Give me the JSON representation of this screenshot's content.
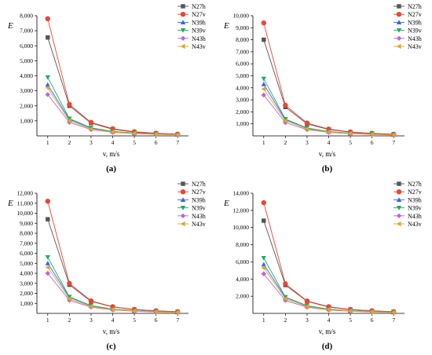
{
  "figure": {
    "panels": [
      "(a)",
      "(b)",
      "(c)",
      "(d)"
    ]
  },
  "chart_data": [
    {
      "type": "line",
      "panel_label": "(a)",
      "xlabel": "v, m/s",
      "ylabel": "E",
      "x": [
        1,
        2,
        3,
        4,
        5,
        6,
        7
      ],
      "xlim": [
        0.5,
        7.5
      ],
      "ylim": [
        0,
        8000
      ],
      "yticks": [
        1000,
        2000,
        3000,
        4000,
        5000,
        6000,
        7000,
        8000
      ],
      "ytick_labels": [
        "1,000",
        "2,000",
        "3,000",
        "4,000",
        "5,000",
        "6,000",
        "7,000",
        "8,000"
      ],
      "legend_position": "top-right",
      "grid": false,
      "series": [
        {
          "name": "N27h",
          "color": "#555555",
          "marker": "square",
          "values": [
            6550,
            2000,
            850,
            440,
            250,
            160,
            100
          ]
        },
        {
          "name": "N27v",
          "color": "#ee4433",
          "marker": "circle",
          "values": [
            7800,
            2100,
            900,
            480,
            280,
            180,
            120
          ]
        },
        {
          "name": "N39h",
          "color": "#3366ee",
          "marker": "triangle-up",
          "values": [
            3400,
            1100,
            520,
            290,
            180,
            120,
            80
          ]
        },
        {
          "name": "N39v",
          "color": "#22aa66",
          "marker": "triangle-down",
          "values": [
            3900,
            1150,
            540,
            300,
            190,
            125,
            85
          ]
        },
        {
          "name": "N43h",
          "color": "#bb66dd",
          "marker": "diamond",
          "values": [
            2750,
            900,
            420,
            240,
            150,
            100,
            70
          ]
        },
        {
          "name": "N43v",
          "color": "#e8a321",
          "marker": "triangle-left",
          "values": [
            3200,
            1000,
            470,
            265,
            165,
            110,
            75
          ]
        }
      ]
    },
    {
      "type": "line",
      "panel_label": "(b)",
      "xlabel": "v, m/s",
      "ylabel": "E",
      "x": [
        1,
        2,
        3,
        4,
        5,
        6,
        7
      ],
      "xlim": [
        0.5,
        7.5
      ],
      "ylim": [
        0,
        10000
      ],
      "yticks": [
        1000,
        2000,
        3000,
        4000,
        5000,
        6000,
        7000,
        8000,
        9000,
        10000
      ],
      "ytick_labels": [
        "1,000",
        "2,000",
        "3,000",
        "4,000",
        "5,000",
        "6,000",
        "7,000",
        "8,000",
        "9,000",
        "10,000"
      ],
      "legend_position": "top-right",
      "grid": false,
      "series": [
        {
          "name": "N27h",
          "color": "#555555",
          "marker": "square",
          "values": [
            8000,
            2400,
            1000,
            530,
            310,
            200,
            130
          ]
        },
        {
          "name": "N27v",
          "color": "#ee4433",
          "marker": "circle",
          "values": [
            9400,
            2550,
            1070,
            570,
            330,
            215,
            140
          ]
        },
        {
          "name": "N39h",
          "color": "#3366ee",
          "marker": "triangle-up",
          "values": [
            4300,
            1350,
            640,
            350,
            215,
            145,
            95
          ]
        },
        {
          "name": "N39v",
          "color": "#22aa66",
          "marker": "triangle-down",
          "values": [
            4750,
            1400,
            660,
            365,
            225,
            150,
            100
          ]
        },
        {
          "name": "N43h",
          "color": "#bb66dd",
          "marker": "diamond",
          "values": [
            3400,
            1100,
            520,
            290,
            180,
            120,
            80
          ]
        },
        {
          "name": "N43v",
          "color": "#e8a321",
          "marker": "triangle-left",
          "values": [
            3900,
            1250,
            580,
            320,
            200,
            132,
            88
          ]
        }
      ]
    },
    {
      "type": "line",
      "panel_label": "(c)",
      "xlabel": "v, m/s",
      "ylabel": "E",
      "x": [
        1,
        2,
        3,
        4,
        5,
        6,
        7
      ],
      "xlim": [
        0.5,
        7.5
      ],
      "ylim": [
        0,
        12000
      ],
      "yticks": [
        1000,
        2000,
        3000,
        4000,
        5000,
        6000,
        7000,
        8000,
        9000,
        10000,
        11000,
        12000
      ],
      "ytick_labels": [
        "1,000",
        "2,000",
        "3,000",
        "4,000",
        "5,000",
        "6,000",
        "7,000",
        "8,000",
        "9,000",
        "10,000",
        "11,000",
        "12,000"
      ],
      "legend_position": "top-right",
      "grid": false,
      "series": [
        {
          "name": "N27h",
          "color": "#555555",
          "marker": "square",
          "values": [
            9400,
            2850,
            1200,
            640,
            380,
            245,
            160
          ]
        },
        {
          "name": "N27v",
          "color": "#ee4433",
          "marker": "circle",
          "values": [
            11200,
            3000,
            1250,
            670,
            400,
            255,
            170
          ]
        },
        {
          "name": "N39h",
          "color": "#3366ee",
          "marker": "triangle-up",
          "values": [
            5000,
            1600,
            760,
            420,
            260,
            170,
            115
          ]
        },
        {
          "name": "N39v",
          "color": "#22aa66",
          "marker": "triangle-down",
          "values": [
            5600,
            1650,
            780,
            430,
            265,
            175,
            118
          ]
        },
        {
          "name": "N43h",
          "color": "#bb66dd",
          "marker": "diamond",
          "values": [
            4000,
            1300,
            620,
            345,
            215,
            142,
            95
          ]
        },
        {
          "name": "N43v",
          "color": "#e8a321",
          "marker": "triangle-left",
          "values": [
            4600,
            1450,
            690,
            380,
            235,
            155,
            105
          ]
        }
      ]
    },
    {
      "type": "line",
      "panel_label": "(d)",
      "xlabel": "v, m/s",
      "ylabel": "E",
      "x": [
        1,
        2,
        3,
        4,
        5,
        6,
        7
      ],
      "xlim": [
        0.5,
        7.5
      ],
      "ylim": [
        0,
        14000
      ],
      "yticks": [
        2000,
        4000,
        6000,
        8000,
        10000,
        12000,
        14000
      ],
      "ytick_labels": [
        "2,000",
        "4,000",
        "6,000",
        "8,000",
        "10,000",
        "12,000",
        "14,000"
      ],
      "legend_position": "top-right",
      "grid": false,
      "series": [
        {
          "name": "N27h",
          "color": "#555555",
          "marker": "square",
          "values": [
            10800,
            3300,
            1400,
            740,
            440,
            285,
            190
          ]
        },
        {
          "name": "N27v",
          "color": "#ee4433",
          "marker": "circle",
          "values": [
            12900,
            3450,
            1450,
            780,
            460,
            300,
            200
          ]
        },
        {
          "name": "N39h",
          "color": "#3366ee",
          "marker": "triangle-up",
          "values": [
            5700,
            1850,
            880,
            490,
            300,
            200,
            135
          ]
        },
        {
          "name": "N39v",
          "color": "#22aa66",
          "marker": "triangle-down",
          "values": [
            6450,
            1900,
            900,
            500,
            305,
            205,
            138
          ]
        },
        {
          "name": "N43h",
          "color": "#bb66dd",
          "marker": "diamond",
          "values": [
            4600,
            1500,
            720,
            400,
            250,
            165,
            110
          ]
        },
        {
          "name": "N43v",
          "color": "#e8a321",
          "marker": "triangle-left",
          "values": [
            5300,
            1700,
            800,
            445,
            275,
            180,
            122
          ]
        }
      ]
    }
  ]
}
